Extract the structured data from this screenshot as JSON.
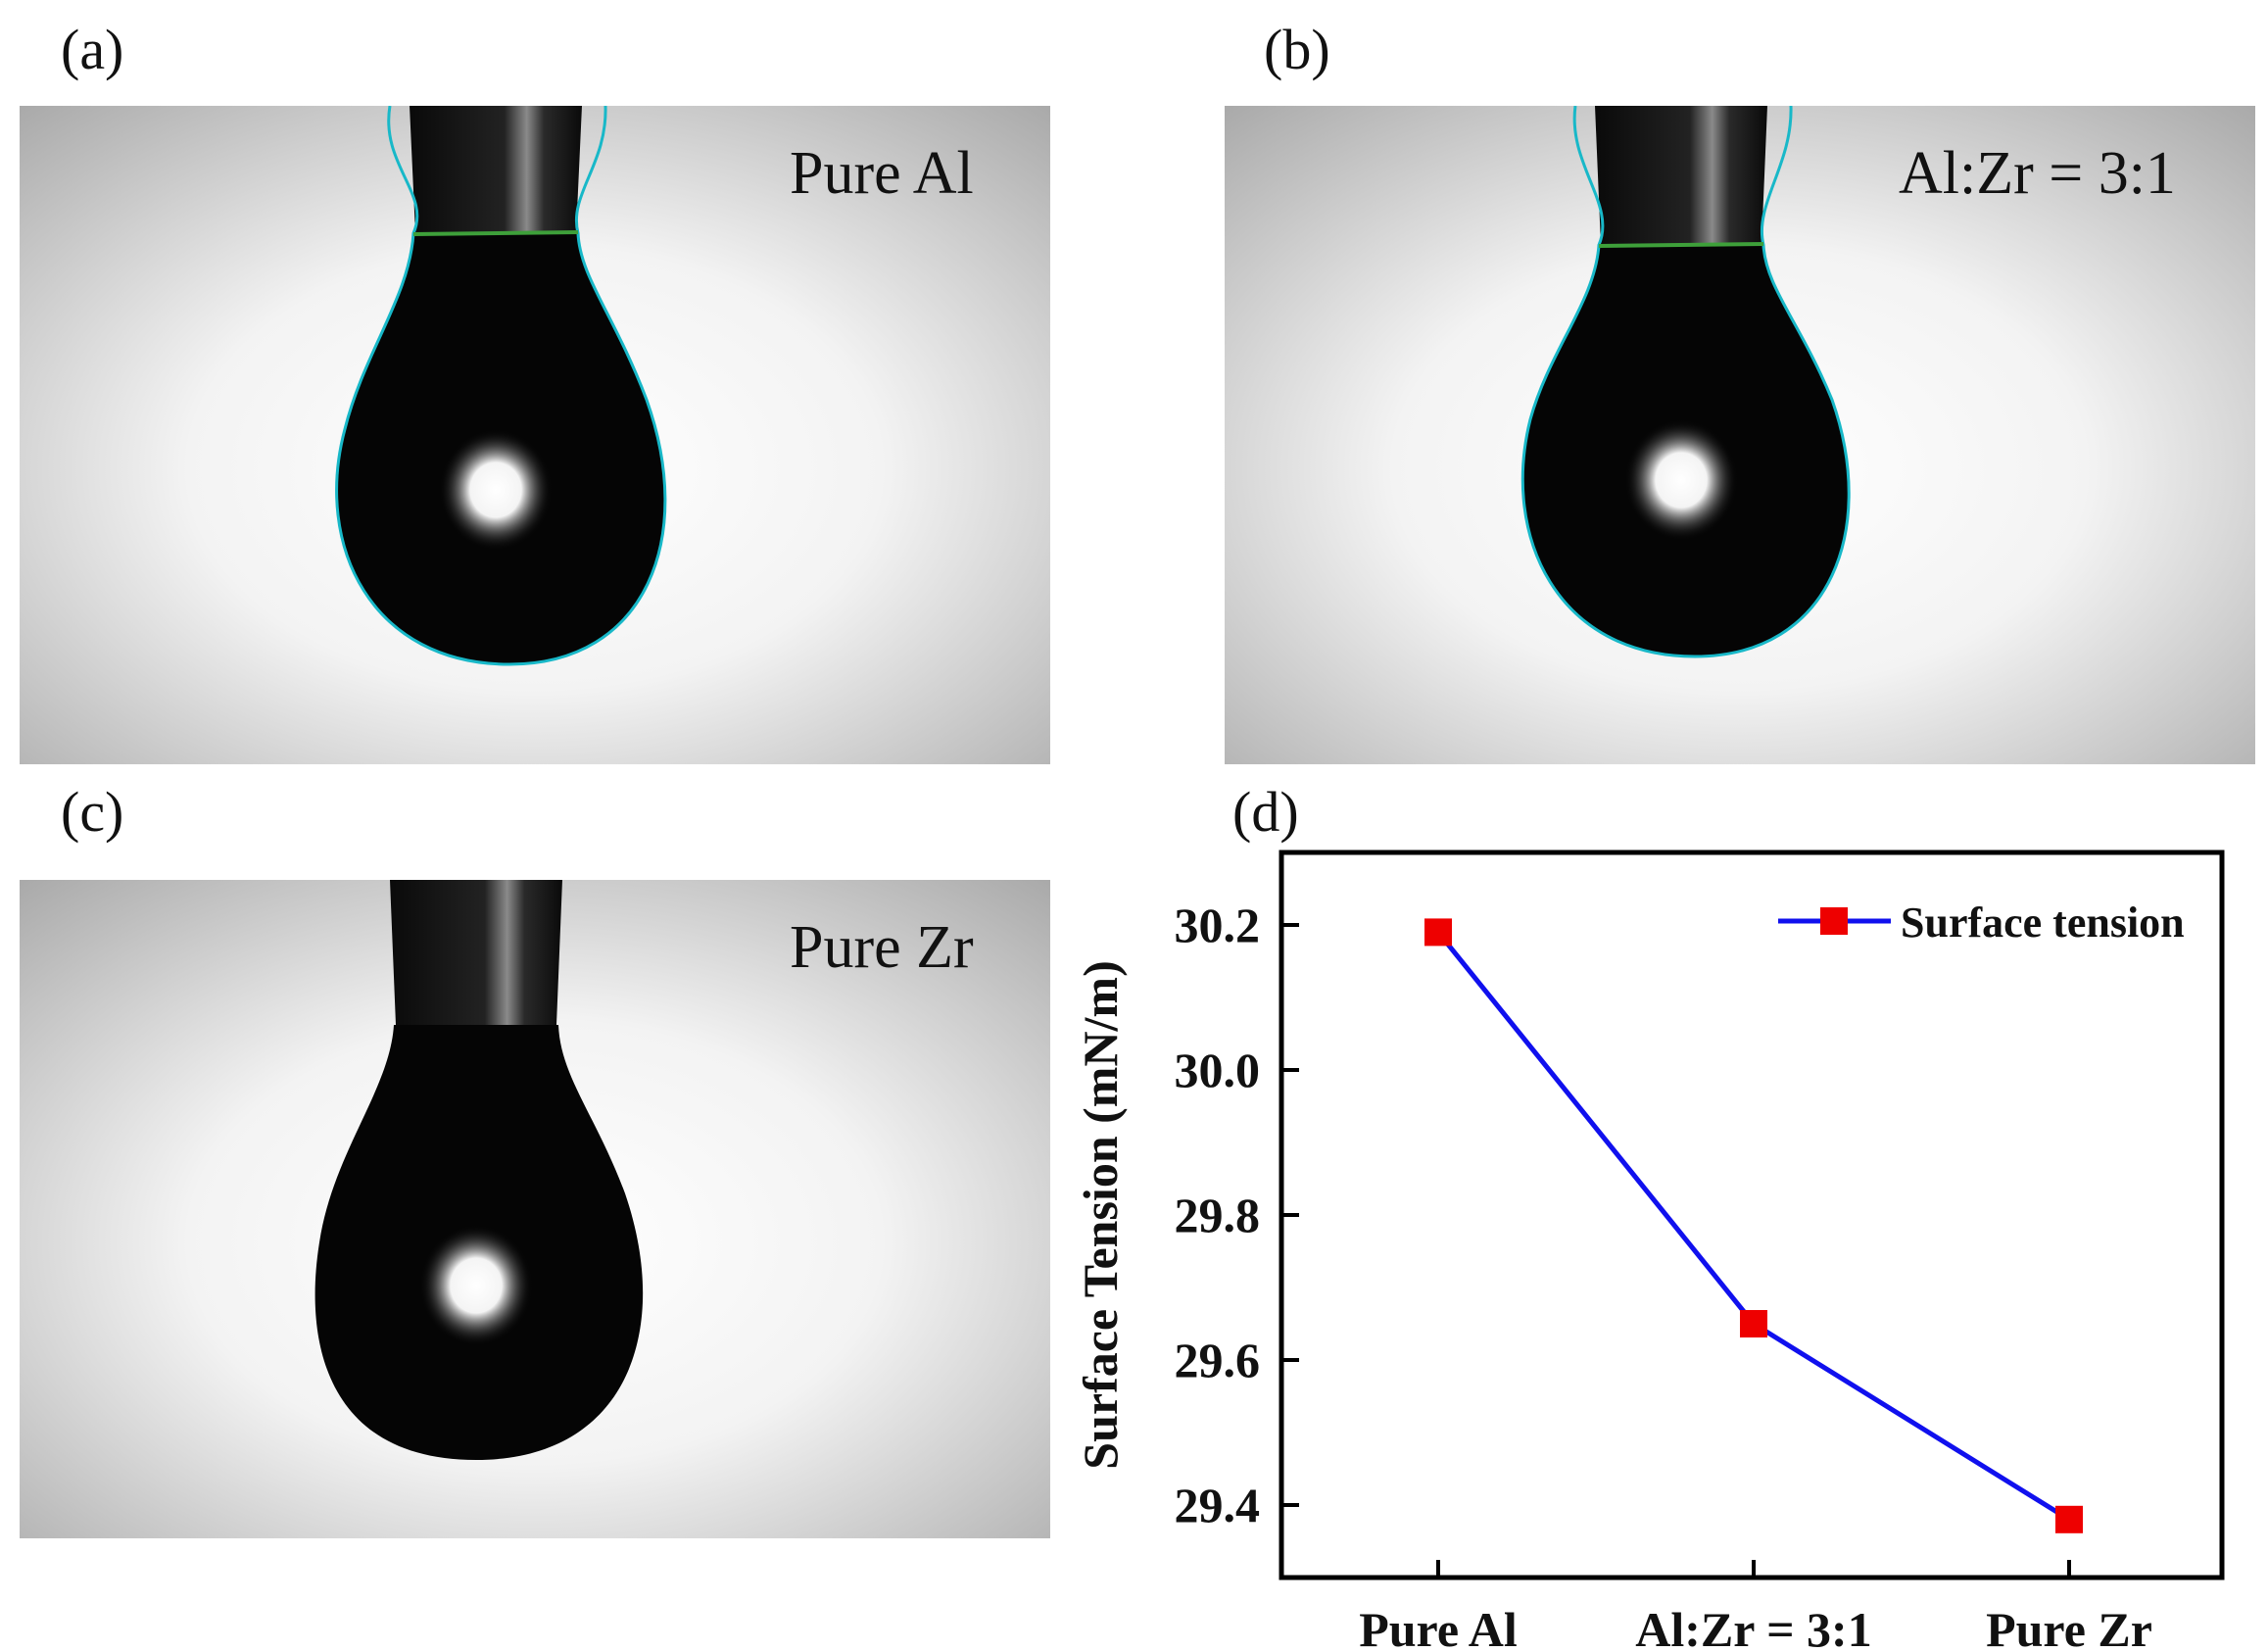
{
  "panels": {
    "a": {
      "letter": "(a)",
      "label": "Pure Al"
    },
    "b": {
      "letter": "(b)",
      "label": "Al:Zr = 3:1"
    },
    "c": {
      "letter": "(c)",
      "label": "Pure Zr"
    },
    "d": {
      "letter": "(d)"
    }
  },
  "chart_data": {
    "type": "line",
    "categories": [
      "Pure Al",
      "Al:Zr = 3:1",
      "Pure Zr"
    ],
    "series": [
      {
        "name": "Surface tension",
        "values": [
          30.19,
          29.65,
          29.38
        ],
        "line_color": "#1010ee",
        "marker_color": "#ee0000",
        "marker": "square"
      }
    ],
    "title": "",
    "xlabel": "",
    "ylabel": "Surface Tension (mN/m)",
    "ylim": [
      29.3,
      30.3
    ],
    "yticks": [
      29.4,
      29.6,
      29.8,
      30.0,
      30.2
    ],
    "ytick_labels": [
      "29.4",
      "29.6",
      "29.8",
      "30.0",
      "30.2"
    ],
    "legend_position": "top-right",
    "grid": false
  }
}
